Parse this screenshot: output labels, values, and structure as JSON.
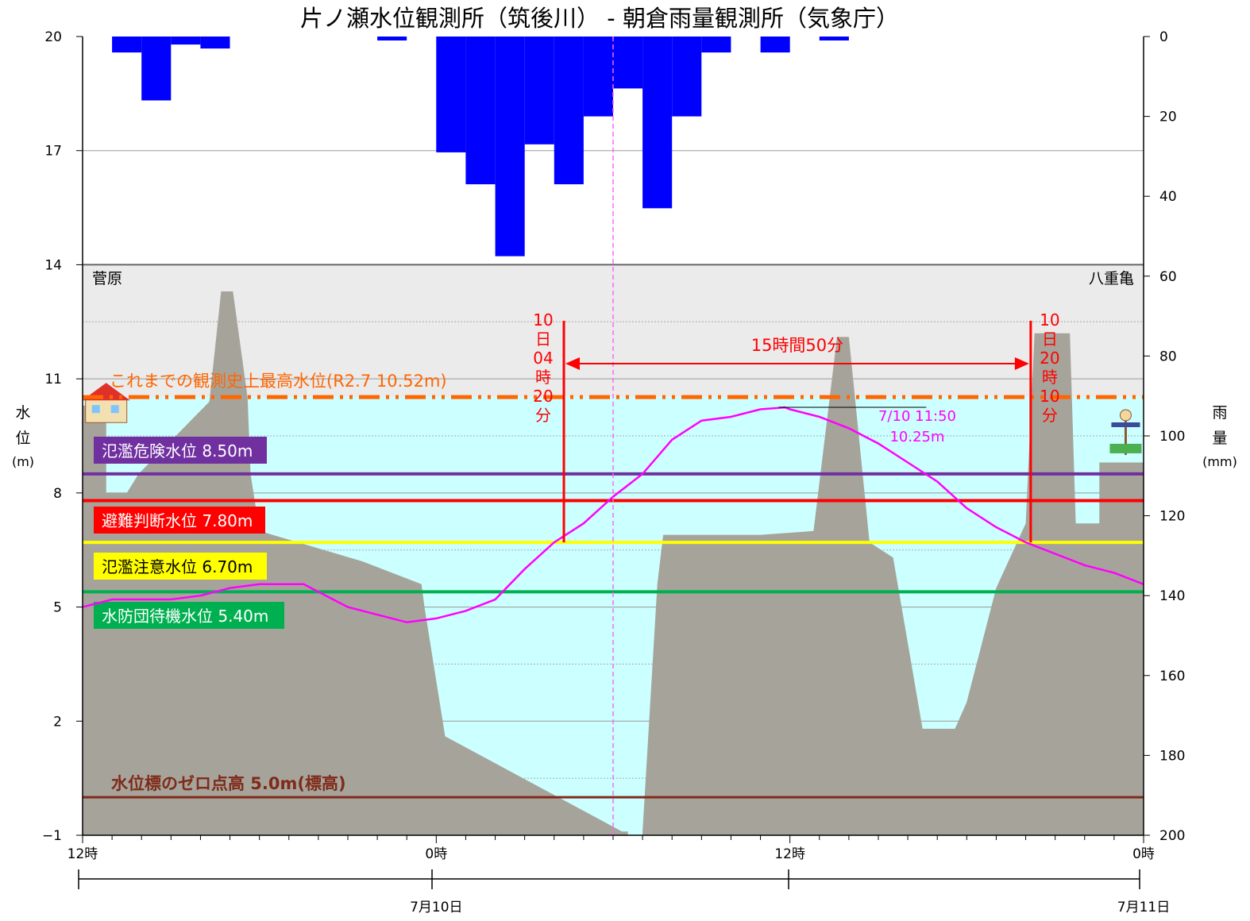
{
  "chart_data": {
    "type": "line",
    "title": "片ノ瀬水位観測所（筑後川） - 朝倉雨量観測所（気象庁）",
    "left_axis": {
      "label_chars": [
        "水",
        "位"
      ],
      "unit": "(m)",
      "ylim": [
        -1,
        20
      ],
      "ticks": [
        -1,
        2,
        5,
        8,
        11,
        14,
        17,
        20
      ]
    },
    "right_axis": {
      "label_chars": [
        "雨",
        "量"
      ],
      "unit": "(mm)",
      "ylim": [
        0,
        200
      ],
      "ticks": [
        0,
        20,
        40,
        60,
        80,
        100,
        120,
        140,
        160,
        180,
        200
      ]
    },
    "x_axis": {
      "range_hours": [
        12,
        48
      ],
      "ticks": [
        {
          "h": 12,
          "label": "12時"
        },
        {
          "h": 24,
          "label": "0時"
        },
        {
          "h": 36,
          "label": "12時"
        },
        {
          "h": 48,
          "label": "0時"
        }
      ],
      "date_ticks": [
        {
          "h": 24,
          "label": "7月10日"
        },
        {
          "h": 48,
          "label": "7月11日"
        }
      ]
    },
    "rainfall": {
      "name": "雨量",
      "color": "#0000ff",
      "bars": [
        {
          "h": 14,
          "mm": 4
        },
        {
          "h": 15,
          "mm": 16
        },
        {
          "h": 16,
          "mm": 2
        },
        {
          "h": 17,
          "mm": 3
        },
        {
          "h": 23,
          "mm": 1
        },
        {
          "h": 25,
          "mm": 29
        },
        {
          "h": 26,
          "mm": 37
        },
        {
          "h": 27,
          "mm": 55
        },
        {
          "h": 28,
          "mm": 27
        },
        {
          "h": 29,
          "mm": 37
        },
        {
          "h": 30,
          "mm": 20
        },
        {
          "h": 31,
          "mm": 13
        },
        {
          "h": 32,
          "mm": 43
        },
        {
          "h": 33,
          "mm": 20
        },
        {
          "h": 34,
          "mm": 4
        },
        {
          "h": 36,
          "mm": 4
        },
        {
          "h": 38,
          "mm": 1
        }
      ]
    },
    "water_level": {
      "name": "水位",
      "color": "#ff00ff",
      "x": [
        12,
        13,
        14,
        15,
        16,
        17,
        18,
        19,
        19.5,
        20,
        21,
        22,
        23,
        24,
        25,
        26,
        27,
        28,
        29,
        30,
        31,
        32,
        33,
        34,
        35,
        35.83,
        36,
        37,
        38,
        39,
        40,
        41,
        42,
        43,
        44,
        45,
        46,
        47,
        48
      ],
      "y": [
        5.0,
        5.2,
        5.2,
        5.2,
        5.3,
        5.5,
        5.6,
        5.6,
        5.6,
        5.4,
        5.0,
        4.8,
        4.6,
        4.7,
        4.9,
        5.2,
        6.0,
        6.7,
        7.2,
        7.9,
        8.5,
        9.4,
        9.9,
        10.0,
        10.2,
        10.25,
        10.2,
        10.0,
        9.7,
        9.3,
        8.8,
        8.3,
        7.6,
        7.1,
        6.7,
        6.4,
        6.1,
        5.9,
        5.6
      ]
    },
    "reference_lines": [
      {
        "label": "これまでの観測史上最高水位(R2.7 10.52m)",
        "value": 10.52,
        "color": "#ff6600",
        "style": "dash-dot"
      },
      {
        "label": "氾濫危険水位 8.50m",
        "value": 8.5,
        "color": "#7030a0"
      },
      {
        "label": "避難判断水位 7.80m",
        "value": 7.8,
        "color": "#ff0000"
      },
      {
        "label": "氾濫注意水位 6.70m",
        "value": 6.7,
        "color": "#ffff00"
      },
      {
        "label": "水防団待機水位 5.40m",
        "value": 5.4,
        "color": "#00b050"
      },
      {
        "label": "水位標のゼロ点高 5.0m(標高)",
        "value": 0.0,
        "color": "#7f2a1a"
      }
    ],
    "bank_labels": {
      "left": "菅原",
      "right": "八重亀"
    },
    "annotations": {
      "peak": {
        "line1": "7/10 11:50",
        "line2": "10.25m"
      },
      "duration": "15時間50分",
      "start_chars": [
        "10",
        "日",
        "04",
        "時",
        "20",
        "分"
      ],
      "end_chars": [
        "10",
        "日",
        "20",
        "時",
        "10",
        "分"
      ],
      "start_h": 28.33,
      "end_h": 44.17,
      "now_h": 30
    },
    "colors": {
      "ground": "#a6a49a",
      "water_fill": "#ccffff",
      "upper_band": "#ebebeb",
      "grid": "#999999"
    }
  }
}
